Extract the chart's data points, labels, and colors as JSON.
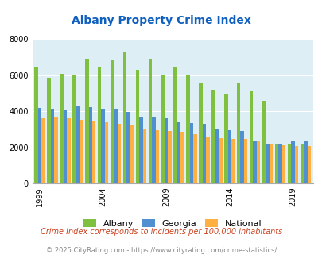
{
  "title": "Albany Property Crime Index",
  "years": [
    1999,
    2000,
    2001,
    2002,
    2003,
    2004,
    2005,
    2006,
    2007,
    2008,
    2009,
    2010,
    2011,
    2012,
    2013,
    2014,
    2015,
    2016,
    2017,
    2018,
    2019,
    2020
  ],
  "albany": [
    6480,
    5850,
    6100,
    6000,
    6900,
    6420,
    6830,
    7300,
    6320,
    6900,
    6000,
    6430,
    6000,
    5550,
    5200,
    4930,
    5600,
    5100,
    4600,
    2200,
    2200,
    2200
  ],
  "georgia": [
    4200,
    4150,
    4050,
    4300,
    4250,
    4150,
    4150,
    3950,
    3700,
    3700,
    3600,
    3400,
    3350,
    3300,
    3000,
    2950,
    2900,
    2350,
    2200,
    2200,
    2350,
    2350
  ],
  "national": [
    3600,
    3700,
    3650,
    3520,
    3480,
    3400,
    3320,
    3200,
    3050,
    2950,
    2900,
    2850,
    2730,
    2610,
    2500,
    2480,
    2460,
    2350,
    2220,
    2100,
    2090,
    2050
  ],
  "albany_color": "#80c040",
  "georgia_color": "#5090d0",
  "national_color": "#ffb040",
  "bg_color": "#ddeef5",
  "yticks": [
    0,
    2000,
    4000,
    6000,
    8000
  ],
  "tick_years": [
    1999,
    2004,
    2009,
    2014,
    2019
  ],
  "title_color": "#1060c0",
  "title_fontsize": 10,
  "subtitle": "Crime Index corresponds to incidents per 100,000 inhabitants",
  "subtitle_color": "#cc4422",
  "subtitle_fontsize": 7,
  "footer": "© 2025 CityRating.com - https://www.cityrating.com/crime-statistics/",
  "footer_color": "#888888",
  "footer_fontsize": 6,
  "legend_fontsize": 8,
  "tick_fontsize": 7,
  "bar_width": 0.28
}
